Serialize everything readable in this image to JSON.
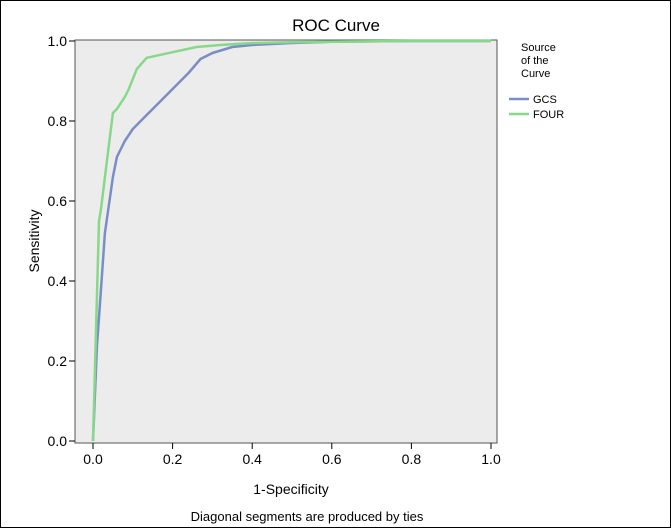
{
  "chart_data": {
    "type": "line",
    "title": "ROC Curve",
    "xlabel": "1-Specificity",
    "ylabel": "Sensitivity",
    "footnote": "Diagonal segments are produced by ties",
    "xlim": [
      0.0,
      1.0
    ],
    "ylim": [
      0.0,
      1.0
    ],
    "xticks": [
      "0.0",
      "0.2",
      "0.4",
      "0.6",
      "0.8",
      "1.0"
    ],
    "yticks": [
      "0.0",
      "0.2",
      "0.4",
      "0.6",
      "0.8",
      "1.0"
    ],
    "grid": false,
    "legend": {
      "title": "Source of the Curve",
      "placement": "right"
    },
    "series": [
      {
        "name": "GCS",
        "color": "#7b8dc6",
        "x": [
          0.0,
          0.01,
          0.02,
          0.03,
          0.05,
          0.06,
          0.08,
          0.1,
          0.13,
          0.16,
          0.2,
          0.24,
          0.27,
          0.3,
          0.35,
          0.4,
          0.5,
          0.6,
          0.7,
          0.8,
          0.9,
          1.0
        ],
        "y": [
          0.0,
          0.24,
          0.38,
          0.52,
          0.66,
          0.71,
          0.75,
          0.78,
          0.81,
          0.84,
          0.88,
          0.92,
          0.955,
          0.97,
          0.985,
          0.99,
          0.995,
          0.998,
          0.999,
          1.0,
          1.0,
          1.0
        ]
      },
      {
        "name": "FOUR",
        "color": "#88d88a",
        "x": [
          0.0,
          0.015,
          0.02,
          0.035,
          0.05,
          0.06,
          0.08,
          0.09,
          0.11,
          0.135,
          0.2,
          0.26,
          0.32,
          0.4,
          0.5,
          0.6,
          0.7,
          0.8,
          0.9,
          1.0
        ],
        "y": [
          0.0,
          0.55,
          0.58,
          0.7,
          0.82,
          0.83,
          0.86,
          0.88,
          0.93,
          0.958,
          0.972,
          0.985,
          0.99,
          0.995,
          0.997,
          0.998,
          0.999,
          1.0,
          1.0,
          1.0
        ]
      }
    ]
  }
}
